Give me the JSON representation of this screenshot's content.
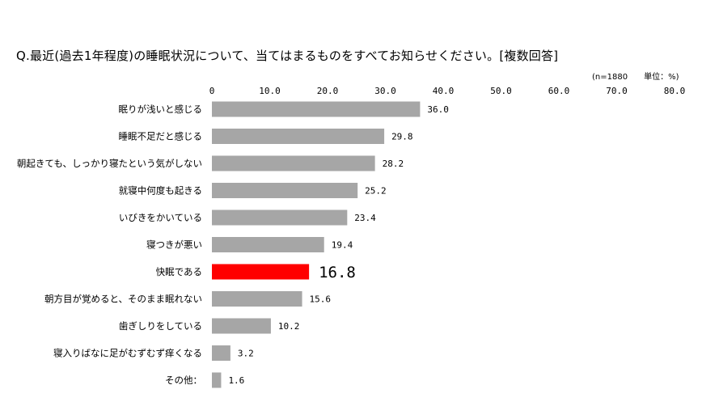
{
  "chart_data": {
    "type": "bar",
    "orientation": "horizontal",
    "title": "Q.最近(過去1年程度)の睡眠状況について、当てはまるものをすべてお知らせください。[複数回答]",
    "note": "(n=1880　　単位：%)",
    "xlim": [
      0,
      80
    ],
    "tick_labels": [
      "0",
      "10.0",
      "20.0",
      "30.0",
      "40.0",
      "50.0",
      "60.0",
      "70.0",
      "80.0"
    ],
    "categories": [
      "眠りが浅いと感じる",
      "睡眠不足だと感じる",
      "朝起きても、しっかり寝たという気がしない",
      "就寝中何度も起きる",
      "いびきをかいている",
      "寝つきが悪い",
      "快眠である",
      "朝方目が覚めると、そのまま眠れない",
      "歯ぎしりをしている",
      "寝入りばなに足がむずむず痒くなる",
      "その他："
    ],
    "values": [
      36.0,
      29.8,
      28.2,
      25.2,
      23.4,
      19.4,
      16.8,
      15.6,
      10.2,
      3.2,
      1.6
    ],
    "value_labels": [
      "36.0",
      "29.8",
      "28.2",
      "25.2",
      "23.4",
      "19.4",
      "16.8",
      "15.6",
      "10.2",
      "3.2",
      "1.6"
    ],
    "highlight": "快眠である",
    "colors": {
      "bar": "#a6a6a6",
      "highlight": "#ff0000"
    },
    "grid": false
  }
}
